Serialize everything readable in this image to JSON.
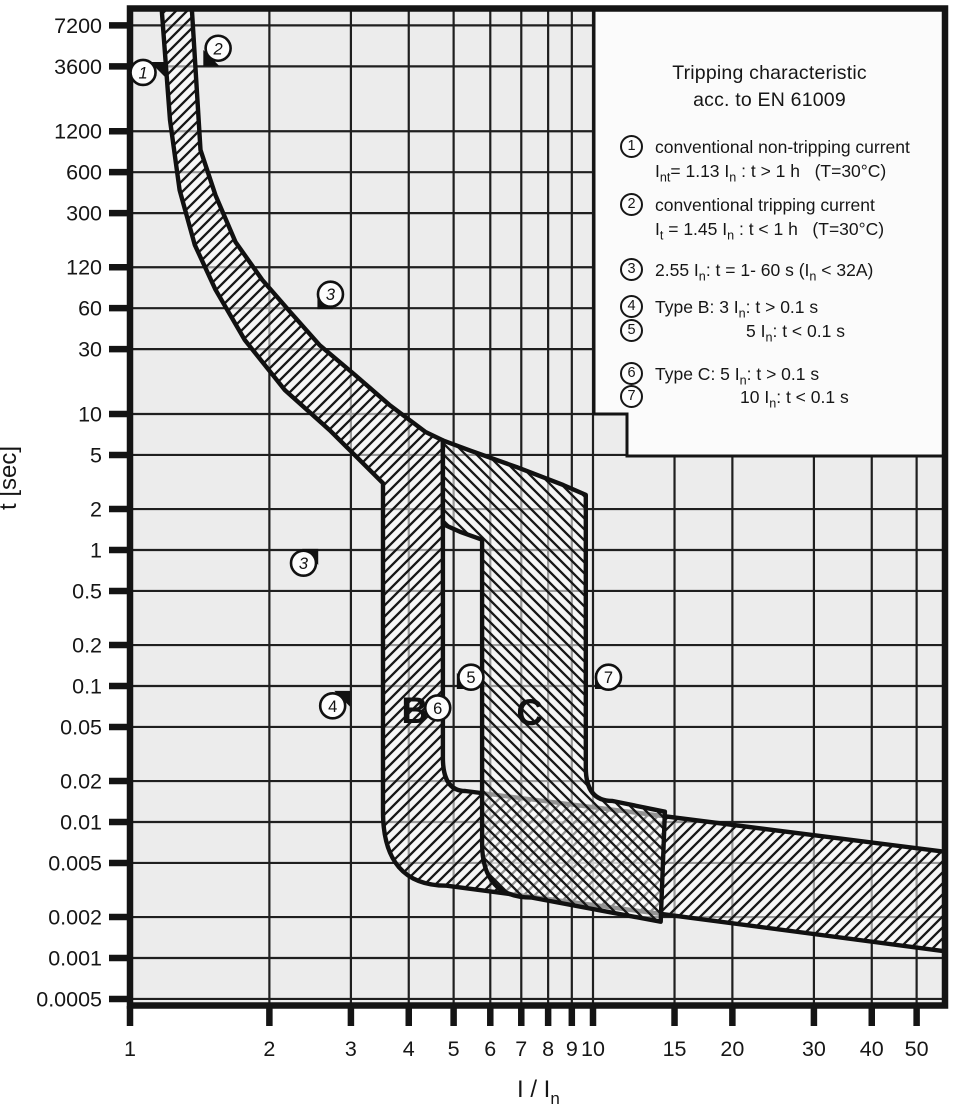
{
  "chart_data": {
    "type": "area",
    "title": "Tripping characteristic acc. to EN 61009",
    "xlabel": "I / I~n~",
    "ylabel": "t [sec]",
    "x_scale": "log",
    "y_scale": "log",
    "grid": true,
    "legend_position": "top-right",
    "x_ticks": [
      1,
      2,
      3,
      4,
      5,
      6,
      7,
      8,
      9,
      10,
      15,
      20,
      30,
      40,
      50
    ],
    "y_ticks": [
      7200,
      3600,
      1200,
      600,
      300,
      120,
      60,
      30,
      10,
      5,
      2,
      1,
      0.5,
      0.2,
      0.1,
      0.05,
      0.02,
      0.01,
      0.005,
      0.002,
      0.001,
      0.0005
    ],
    "x_range": [
      1,
      57.6
    ],
    "y_range": [
      0.00038,
      9700
    ],
    "series": [
      {
        "name": "Type B tolerance band",
        "hatch": "/",
        "outline": [
          [
            "M",
            1.17,
            9650
          ],
          [
            "L",
            1.22,
            1450
          ],
          [
            "L",
            1.28,
            444
          ],
          [
            "L",
            1.38,
            175
          ],
          [
            "L",
            1.53,
            82
          ],
          [
            "L",
            1.77,
            35
          ],
          [
            "L",
            2.16,
            15
          ],
          [
            "L",
            2.7,
            7.6
          ],
          [
            "L",
            3.52,
            3.1
          ],
          [
            "L",
            3.52,
            0.0119
          ],
          [
            "Q",
            3.52,
            0.0034,
            4.83,
            0.0034
          ],
          [
            "L",
            57.6,
            0.00112
          ],
          [
            "L",
            57.6,
            0.00604
          ],
          [
            "L",
            5.3,
            0.0169
          ],
          [
            "Q",
            4.74,
            0.0169,
            4.74,
            0.0296
          ],
          [
            "L",
            4.74,
            6.4
          ],
          [
            "L",
            4.34,
            7.4
          ],
          [
            "L",
            3.63,
            11.7
          ],
          [
            "L",
            3.06,
            19.4
          ],
          [
            "L",
            2.57,
            32
          ],
          [
            "L",
            2.22,
            56
          ],
          [
            "L",
            1.93,
            97
          ],
          [
            "L",
            1.69,
            184
          ],
          [
            "L",
            1.53,
            406
          ],
          [
            "L",
            1.42,
            874
          ],
          [
            "L",
            1.36,
            9650
          ],
          [
            "Z"
          ]
        ]
      },
      {
        "name": "Type C tolerance band",
        "hatch": "\\",
        "outline": [
          [
            "M",
            4.74,
            6.4
          ],
          [
            "L",
            5.42,
            5.4
          ],
          [
            "L",
            6.84,
            4.07
          ],
          [
            "L",
            8.63,
            3.0
          ],
          [
            "L",
            9.65,
            2.54
          ],
          [
            "L",
            9.65,
            0.0251
          ],
          [
            "Q",
            9.65,
            0.0143,
            10.99,
            0.0143
          ],
          [
            "L",
            14.3,
            0.0119
          ],
          [
            "L",
            14.0,
            0.00185
          ],
          [
            "L",
            7.38,
            0.00278
          ],
          [
            "Q",
            5.76,
            0.00278,
            5.76,
            0.00695
          ],
          [
            "L",
            5.76,
            1.19
          ],
          [
            "L",
            5.16,
            1.36
          ],
          [
            "L",
            4.74,
            1.55
          ],
          [
            "Z"
          ]
        ]
      }
    ],
    "region_labels": [
      {
        "text": "B",
        "x": 4.12,
        "t": 0.0667
      },
      {
        "text": "C",
        "x": 7.3,
        "t": 0.0645
      }
    ],
    "annotations": [
      {
        "num": "1",
        "x": 1.067,
        "t": 3247,
        "italic": true,
        "pointer": {
          "x": 1.196,
          "t": 3872,
          "dir": "ne"
        }
      },
      {
        "num": "2",
        "x": 1.55,
        "t": 4890,
        "italic": true,
        "pointer": {
          "x": 1.44,
          "t": 3620,
          "dir": "sw"
        }
      },
      {
        "num": "3",
        "x": 2.71,
        "t": 76,
        "italic": true,
        "pointer": {
          "x": 2.54,
          "t": 59,
          "dir": "sw"
        }
      },
      {
        "num": "3",
        "x": 2.37,
        "t": 0.8,
        "italic": true,
        "pointer": {
          "x": 2.55,
          "t": 1.02,
          "dir": "ne"
        }
      },
      {
        "num": "4",
        "x": 2.74,
        "t": 0.0715,
        "italic": false,
        "pointer": {
          "x": 2.99,
          "t": 0.092,
          "dir": "ne"
        }
      },
      {
        "num": "5",
        "x": 5.45,
        "t": 0.116,
        "italic": false,
        "pointer": {
          "x": 5.08,
          "t": 0.095,
          "dir": "sw"
        }
      },
      {
        "num": "6",
        "x": 4.62,
        "t": 0.069,
        "italic": false,
        "pointer": null
      },
      {
        "num": "7",
        "x": 10.8,
        "t": 0.116,
        "italic": false,
        "pointer": {
          "x": 10.1,
          "t": 0.095,
          "dir": "sw"
        }
      }
    ],
    "legend": {
      "title_line1": "Tripping characteristic",
      "title_line2": "acc. to EN 61009",
      "items": [
        {
          "num": "1",
          "lines": [
            "conventional non-tripping current",
            "I~nt~= 1.13 I~n~ : t > 1 h   (T=30°C)"
          ]
        },
        {
          "num": "2",
          "lines": [
            "conventional tripping current",
            "I~t~ = 1.45 I~n~ : t < 1 h   (T=30°C)"
          ]
        },
        {
          "num": "3",
          "lines": [
            "2.55 I~n~: t = 1- 60 s (I~n~ < 32A)"
          ]
        },
        {
          "num": "4",
          "lines": [
            "Type B: 3 I~n~: t > 0.1 s"
          ]
        },
        {
          "num": "5",
          "lines": [
            "5 I~n~: t < 0.1 s"
          ]
        },
        {
          "num": "6",
          "lines": [
            "Type C: 5 I~n~: t > 0.1 s"
          ]
        },
        {
          "num": "7",
          "lines": [
            "10 I~n~: t < 0.1 s"
          ]
        }
      ]
    },
    "colors": {
      "plot_background": "#ececec",
      "grid_line": "#1f1f1f",
      "band_outline": "#111111",
      "hatch_line": "#161616",
      "frame": "#141414",
      "legend_background": "#fbfbfb",
      "text": "#161616"
    }
  }
}
